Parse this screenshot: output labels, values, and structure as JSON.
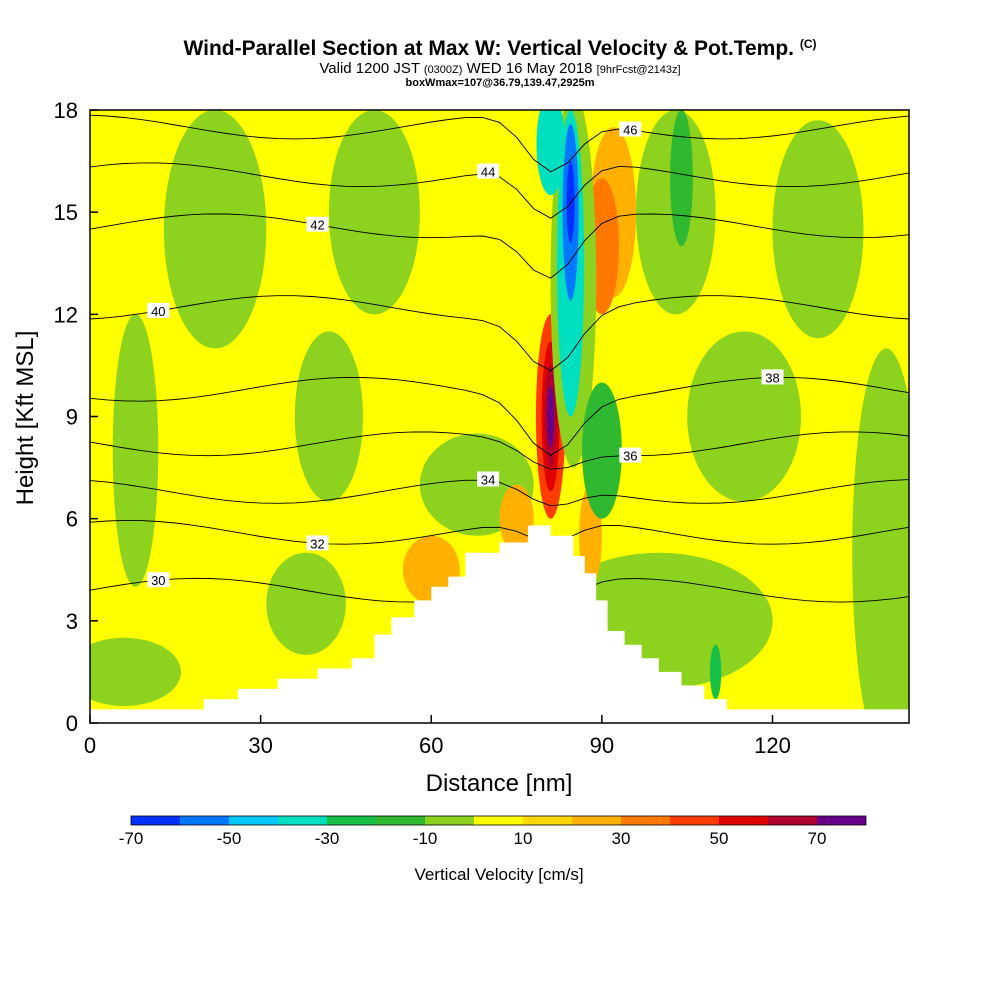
{
  "title": {
    "main": "Wind-Parallel Section at Max W: Vertical Velocity & Pot.Temp.",
    "copyright": "(C)",
    "valid_prefix": "Valid 1200 JST",
    "valid_utc": "(0300Z)",
    "valid_suffix": "WED 16 May 2018",
    "forecast": "[9hrFcst@2143z]",
    "boxline": "boxWmax=107@36.79,139.47,2925m"
  },
  "chart_data": {
    "type": "heatmap",
    "xlabel": "Distance [nm]",
    "ylabel": "Height [Kft MSL]",
    "xlim": [
      0,
      144
    ],
    "ylim": [
      0,
      18
    ],
    "xticks": [
      0,
      30,
      60,
      90,
      120
    ],
    "yticks": [
      0,
      3,
      6,
      9,
      12,
      15,
      18
    ],
    "terrain": [
      [
        0,
        0.4
      ],
      [
        20,
        0.4
      ],
      [
        20,
        0.7
      ],
      [
        26,
        0.7
      ],
      [
        26,
        1
      ],
      [
        33,
        1
      ],
      [
        33,
        1.3
      ],
      [
        40,
        1.3
      ],
      [
        40,
        1.6
      ],
      [
        46,
        1.6
      ],
      [
        46,
        1.9
      ],
      [
        50,
        1.9
      ],
      [
        50,
        2.6
      ],
      [
        53,
        2.6
      ],
      [
        53,
        3.1
      ],
      [
        57,
        3.1
      ],
      [
        57,
        3.6
      ],
      [
        60,
        3.6
      ],
      [
        60,
        4
      ],
      [
        63,
        4
      ],
      [
        63,
        4.3
      ],
      [
        66,
        4.3
      ],
      [
        66,
        5
      ],
      [
        72,
        5
      ],
      [
        72,
        5.3
      ],
      [
        77,
        5.3
      ],
      [
        77,
        5.8
      ],
      [
        81,
        5.8
      ],
      [
        81,
        5.5
      ],
      [
        85,
        5.5
      ],
      [
        85,
        4.9
      ],
      [
        87,
        4.9
      ],
      [
        87,
        4.4
      ],
      [
        89,
        4.4
      ],
      [
        89,
        3.6
      ],
      [
        91,
        3.6
      ],
      [
        91,
        2.7
      ],
      [
        94,
        2.7
      ],
      [
        94,
        2.3
      ],
      [
        97,
        2.3
      ],
      [
        97,
        1.9
      ],
      [
        100,
        1.9
      ],
      [
        100,
        1.5
      ],
      [
        104,
        1.5
      ],
      [
        104,
        1.1
      ],
      [
        108,
        1.1
      ],
      [
        108,
        0.7
      ],
      [
        112,
        0.7
      ],
      [
        112,
        0.4
      ],
      [
        144,
        0.4
      ]
    ],
    "velocity_bands": {
      "title": "Vertical Velocity [cm/s]",
      "tick_labels": [
        "-70",
        "-50",
        "-30",
        "-10",
        "10",
        "30",
        "50",
        "70"
      ],
      "colors": [
        "#0030ff",
        "#0078ff",
        "#00c8ff",
        "#00e0c0",
        "#18c048",
        "#30b830",
        "#8cd21e",
        "#ffff00",
        "#ffd700",
        "#ffb000",
        "#ff7800",
        "#ff3c00",
        "#e00000",
        "#b00030",
        "#660088"
      ]
    },
    "theta_contours": [
      {
        "label": "30",
        "height": 3.9
      },
      {
        "label": "32",
        "height": 5.6
      },
      {
        "label": "34",
        "height": 6.8
      },
      {
        "label": "36",
        "height": 8.2
      },
      {
        "label": "38",
        "height": 9.8
      },
      {
        "label": "40",
        "height": 12.2
      },
      {
        "label": "42",
        "height": 14.6
      },
      {
        "label": "44",
        "height": 16.1
      },
      {
        "label": "46",
        "height": 17.5
      }
    ]
  }
}
